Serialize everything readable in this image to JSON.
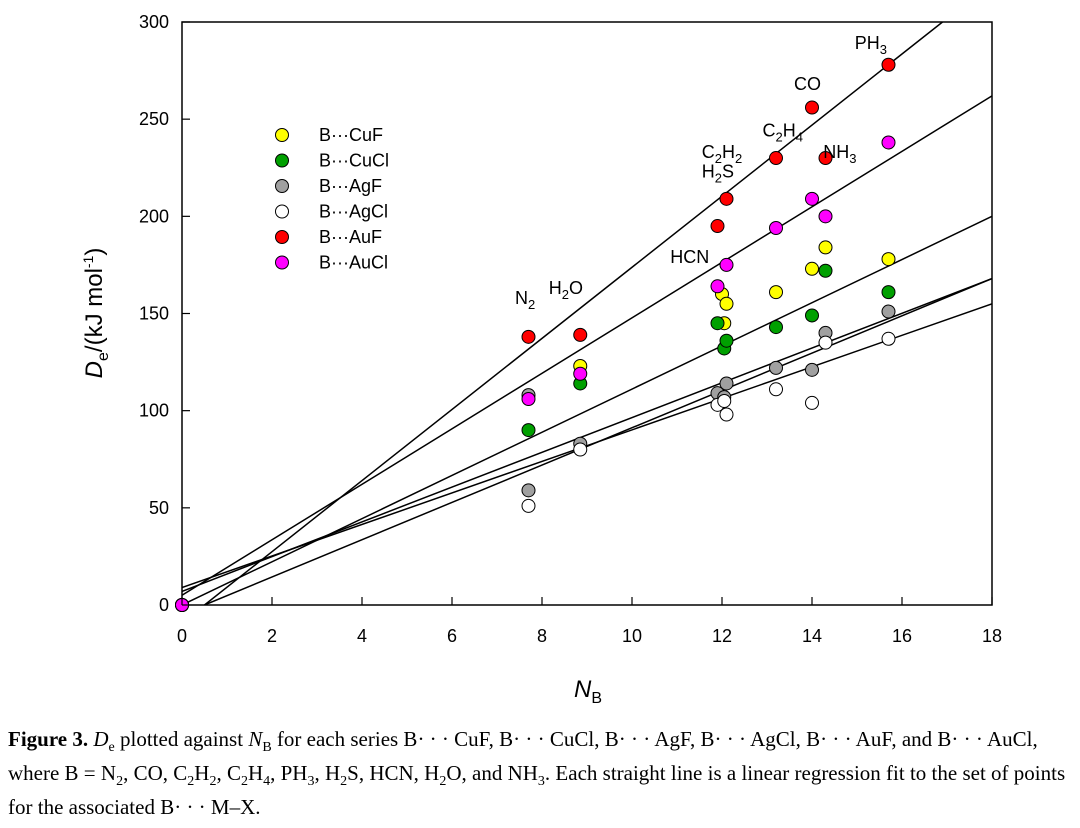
{
  "chart_data": {
    "type": "scatter",
    "xlabel": "N",
    "xlabel_sub": "B",
    "ylabel_main": "D",
    "ylabel_sub": "e",
    "ylabel_rest": "/(kJ mol",
    "ylabel_sup": "-1",
    "ylabel_close": ")",
    "xlim": [
      0,
      18
    ],
    "ylim": [
      0,
      300
    ],
    "xticks": [
      0,
      2,
      4,
      6,
      8,
      10,
      12,
      14,
      16,
      18
    ],
    "yticks": [
      0,
      50,
      100,
      150,
      200,
      250,
      300
    ],
    "legend_position": "upper-left",
    "series": [
      {
        "name": "B···CuF",
        "color": "#ffff00",
        "points": [
          [
            0,
            0
          ],
          [
            8.85,
            123
          ],
          [
            12.0,
            160
          ],
          [
            12.05,
            145
          ],
          [
            12.1,
            155
          ],
          [
            13.2,
            161
          ],
          [
            14.0,
            173
          ],
          [
            14.3,
            184
          ],
          [
            15.7,
            178
          ]
        ],
        "fit": [
          [
            0,
            0
          ],
          [
            18,
            200
          ]
        ]
      },
      {
        "name": "B···CuCl",
        "color": "#00a000",
        "points": [
          [
            0,
            0
          ],
          [
            7.7,
            90
          ],
          [
            8.85,
            114
          ],
          [
            11.9,
            145
          ],
          [
            12.05,
            132
          ],
          [
            12.1,
            136
          ],
          [
            13.2,
            143
          ],
          [
            14.0,
            149
          ],
          [
            14.3,
            172
          ],
          [
            15.7,
            161
          ]
        ],
        "fit": [
          [
            0,
            7
          ],
          [
            18,
            168
          ]
        ]
      },
      {
        "name": "B···AgF",
        "color": "#a0a0a0",
        "points": [
          [
            0,
            0
          ],
          [
            7.7,
            59
          ],
          [
            7.7,
            108
          ],
          [
            8.85,
            83
          ],
          [
            11.9,
            109
          ],
          [
            12.05,
            107
          ],
          [
            12.1,
            114
          ],
          [
            13.2,
            122
          ],
          [
            14.0,
            121
          ],
          [
            14.3,
            140
          ],
          [
            15.7,
            151
          ]
        ],
        "fit": [
          [
            0.5,
            0
          ],
          [
            18,
            168
          ]
        ]
      },
      {
        "name": "B···AgCl",
        "color": "#ffffff",
        "points": [
          [
            0,
            0
          ],
          [
            7.7,
            51
          ],
          [
            8.85,
            80
          ],
          [
            11.9,
            103
          ],
          [
            12.05,
            105
          ],
          [
            12.1,
            98
          ],
          [
            13.2,
            111
          ],
          [
            14.0,
            104
          ],
          [
            14.3,
            135
          ],
          [
            15.7,
            137
          ]
        ],
        "fit": [
          [
            0,
            9
          ],
          [
            18,
            155
          ]
        ]
      },
      {
        "name": "B···AuF",
        "color": "#ff0000",
        "points": [
          [
            0,
            0
          ],
          [
            7.7,
            138
          ],
          [
            8.85,
            139
          ],
          [
            11.9,
            195
          ],
          [
            12.1,
            209
          ],
          [
            13.2,
            230
          ],
          [
            14.0,
            256
          ],
          [
            14.3,
            230
          ],
          [
            15.7,
            278
          ]
        ],
        "fit": [
          [
            0.5,
            0
          ],
          [
            16.9,
            300
          ]
        ]
      },
      {
        "name": "B···AuCl",
        "color": "#ff00ff",
        "points": [
          [
            0,
            0
          ],
          [
            7.7,
            106
          ],
          [
            8.85,
            119
          ],
          [
            11.9,
            164
          ],
          [
            12.1,
            175
          ],
          [
            13.2,
            194
          ],
          [
            14.0,
            209
          ],
          [
            14.3,
            200
          ],
          [
            15.7,
            238
          ]
        ],
        "fit": [
          [
            0,
            5
          ],
          [
            18,
            262
          ]
        ]
      }
    ],
    "annotations": [
      {
        "parts": [
          [
            "N",
            ""
          ],
          [
            "2",
            "sub"
          ]
        ],
        "x": 7.4,
        "y": 155
      },
      {
        "parts": [
          [
            "H",
            ""
          ],
          [
            "2",
            "sub"
          ],
          [
            "O",
            ""
          ]
        ],
        "x": 8.15,
        "y": 160
      },
      {
        "parts": [
          [
            "HCN",
            ""
          ]
        ],
        "x": 10.85,
        "y": 176
      },
      {
        "parts": [
          [
            "H",
            ""
          ],
          [
            "2",
            "sub"
          ],
          [
            "S",
            ""
          ]
        ],
        "x": 11.55,
        "y": 220
      },
      {
        "parts": [
          [
            "C",
            ""
          ],
          [
            "2",
            "sub"
          ],
          [
            "H",
            ""
          ],
          [
            "2",
            "sub"
          ]
        ],
        "x": 11.55,
        "y": 230
      },
      {
        "parts": [
          [
            "C",
            ""
          ],
          [
            "2",
            "sub"
          ],
          [
            "H",
            ""
          ],
          [
            "4",
            "sub"
          ]
        ],
        "x": 12.9,
        "y": 241
      },
      {
        "parts": [
          [
            "CO",
            ""
          ]
        ],
        "x": 13.6,
        "y": 265
      },
      {
        "parts": [
          [
            "NH",
            ""
          ],
          [
            "3",
            "sub"
          ]
        ],
        "x": 14.25,
        "y": 230
      },
      {
        "parts": [
          [
            "PH",
            ""
          ],
          [
            "3",
            "sub"
          ]
        ],
        "x": 14.95,
        "y": 286
      }
    ]
  },
  "caption": {
    "label": "Figure 3.",
    "text_1": " plotted against ",
    "text_2": " for each series B· · · CuF, B· · · CuCl, B· · · AgF, B· · · AgCl, B· · · AuF, and B· · · AuCl, where B = N",
    "text_3": ", CO, C",
    "text_4": "H",
    "text_5": ", C",
    "text_6": "H",
    "text_7": ", PH",
    "text_8": ", H",
    "text_9": "S, HCN, H",
    "text_10": "O, and NH",
    "text_11": ". Each straight line is a linear regression fit to the set of points for the associated B· · · M–X.",
    "d_sym": "D",
    "d_sub": "e",
    "n_sym": "N",
    "n_sub": "B",
    "sub_2": "2",
    "sub_4": "4",
    "sub_3": "3"
  }
}
